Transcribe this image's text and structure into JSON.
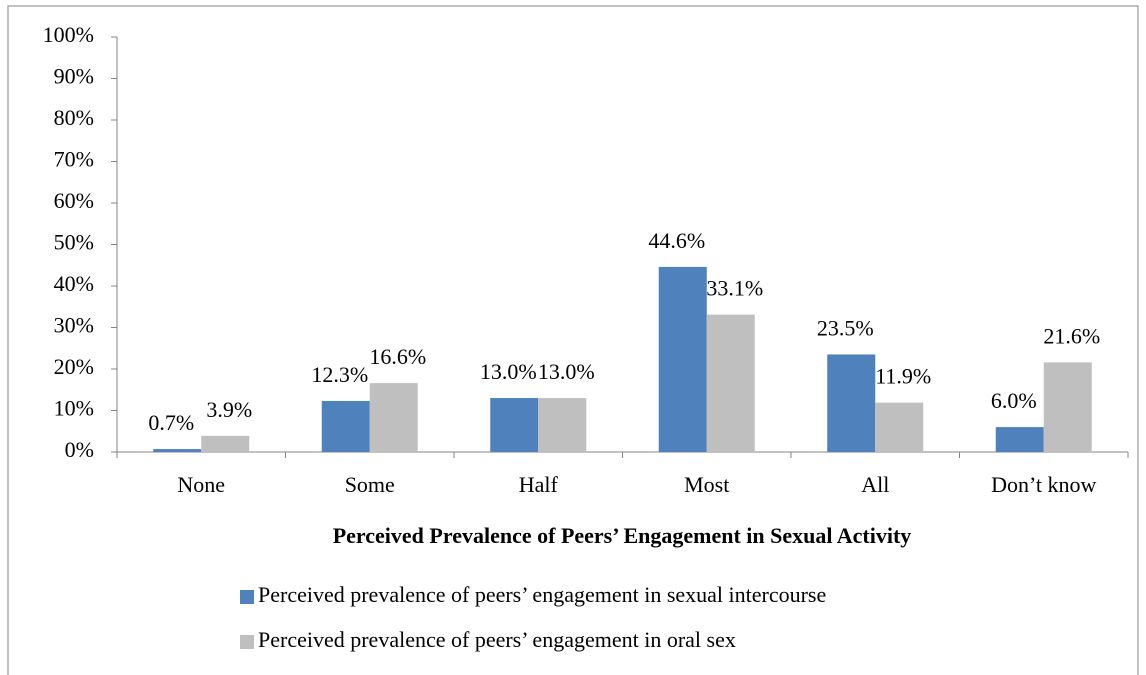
{
  "chart_data": {
    "type": "bar",
    "x_label": "Perceived Prevalence of Peers’ Engagement in Sexual Activity",
    "categories": [
      "None",
      "Some",
      "Half",
      "Most",
      "All",
      "Don’t know"
    ],
    "series": [
      {
        "name": "Perceived prevalence of peers’ engagement in sexual intercourse",
        "color": "#4f81bd",
        "values": [
          0.7,
          12.3,
          13.0,
          44.6,
          23.5,
          6.0
        ],
        "value_labels": [
          "0.7%",
          "12.3%",
          "13.0%",
          "44.6%",
          "23.5%",
          "6.0%"
        ]
      },
      {
        "name": "Perceived prevalence of peers’ engagement in oral sex",
        "color": "#bfbfbf",
        "values": [
          3.9,
          16.6,
          13.0,
          33.1,
          11.9,
          21.6
        ],
        "value_labels": [
          "3.9%",
          "16.6%",
          "13.0%",
          "33.1%",
          "11.9%",
          "21.6%"
        ]
      }
    ],
    "ylim": [
      0,
      100
    ],
    "yticks": [
      {
        "value": 0,
        "label": "0%"
      },
      {
        "value": 10,
        "label": "10%"
      },
      {
        "value": 20,
        "label": "20%"
      },
      {
        "value": 30,
        "label": "30%"
      },
      {
        "value": 40,
        "label": "40%"
      },
      {
        "value": 50,
        "label": "50%"
      },
      {
        "value": 60,
        "label": "60%"
      },
      {
        "value": 70,
        "label": "70%"
      },
      {
        "value": 80,
        "label": "80%"
      },
      {
        "value": 90,
        "label": "90%"
      },
      {
        "value": 100,
        "label": "100%"
      }
    ],
    "grid": false,
    "legend": "bottom"
  }
}
